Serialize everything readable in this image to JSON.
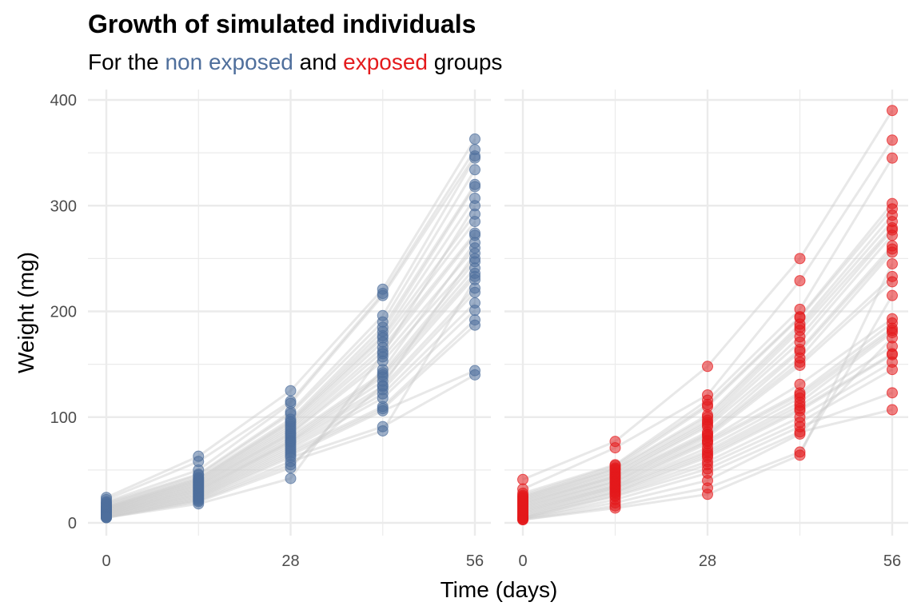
{
  "title": "Growth of simulated individuals",
  "subtitle": {
    "prefix": "For the ",
    "group1": "non exposed",
    "mid": " and ",
    "group2": "exposed",
    "suffix": " groups"
  },
  "colors": {
    "non_exposed": "#4f6f9c",
    "exposed": "#e41a1c",
    "trajectory": "#cccccc",
    "grid": "#ebebeb"
  },
  "chart_data": {
    "type": "scatter",
    "title": "Growth of simulated individuals",
    "xlabel": "Time (days)",
    "ylabel": "Weight (mg)",
    "xlim": [
      0,
      56
    ],
    "ylim": [
      0,
      400
    ],
    "x_ticks": [
      0,
      28,
      56
    ],
    "x_tick_labels": [
      "0",
      "28",
      "56"
    ],
    "y_ticks": [
      0,
      100,
      200,
      300,
      400
    ],
    "y_tick_labels": [
      "0",
      "100",
      "200",
      "300",
      "400"
    ],
    "timepoints": [
      0,
      14,
      28,
      42,
      56
    ],
    "grid": true,
    "legend": "none",
    "panels": [
      {
        "name": "non exposed",
        "color": "#4f6f9c",
        "points": {
          "0": [
            24,
            22,
            20,
            19,
            18,
            17,
            16,
            15,
            15,
            14,
            14,
            13,
            13,
            12,
            12,
            11,
            11,
            10,
            10,
            9,
            9,
            8,
            8,
            7,
            7,
            6,
            6,
            5,
            5,
            5
          ],
          "14": [
            63,
            58,
            50,
            46,
            45,
            43,
            42,
            41,
            40,
            39,
            38,
            37,
            36,
            35,
            34,
            33,
            32,
            31,
            30,
            29,
            28,
            27,
            26,
            25,
            24,
            23,
            22,
            21,
            20,
            18
          ],
          "28": [
            125,
            115,
            113,
            105,
            103,
            98,
            96,
            95,
            93,
            91,
            89,
            87,
            85,
            84,
            82,
            80,
            78,
            77,
            76,
            74,
            72,
            70,
            68,
            66,
            64,
            62,
            58,
            55,
            52,
            42
          ],
          "42": [
            221,
            217,
            215,
            196,
            190,
            185,
            181,
            177,
            175,
            171,
            166,
            162,
            157,
            153,
            142,
            140,
            138,
            134,
            129,
            126,
            122,
            118,
            110,
            108,
            106,
            91,
            87,
            130,
            145,
            160
          ],
          "56": [
            363,
            353,
            347,
            345,
            334,
            320,
            318,
            307,
            292,
            285,
            274,
            272,
            260,
            250,
            247,
            241,
            236,
            233,
            222,
            218,
            208,
            201,
            192,
            187,
            144,
            140,
            230,
            255,
            265,
            300
          ]
        }
      },
      {
        "name": "exposed",
        "color": "#e41a1c",
        "points": {
          "0": [
            41,
            32,
            28,
            26,
            25,
            24,
            23,
            22,
            21,
            20,
            19,
            18,
            17,
            16,
            15,
            14,
            13,
            12,
            11,
            10,
            9,
            8,
            7,
            6,
            5,
            5,
            4,
            4,
            3,
            3
          ],
          "14": [
            77,
            71,
            55,
            54,
            52,
            51,
            50,
            48,
            47,
            45,
            44,
            43,
            42,
            40,
            39,
            38,
            36,
            35,
            34,
            33,
            32,
            30,
            29,
            28,
            26,
            25,
            22,
            19,
            16,
            14
          ],
          "28": [
            148,
            121,
            116,
            112,
            110,
            102,
            100,
            97,
            95,
            93,
            91,
            86,
            84,
            83,
            81,
            78,
            77,
            75,
            71,
            68,
            66,
            64,
            62,
            58,
            55,
            51,
            47,
            40,
            33,
            27
          ],
          "42": [
            250,
            229,
            202,
            195,
            194,
            188,
            185,
            182,
            176,
            171,
            164,
            162,
            156,
            152,
            149,
            131,
            123,
            121,
            118,
            114,
            111,
            108,
            106,
            100,
            95,
            91,
            86,
            84,
            67,
            64
          ],
          "56": [
            390,
            362,
            345,
            302,
            297,
            291,
            285,
            279,
            277,
            272,
            262,
            259,
            256,
            233,
            228,
            193,
            189,
            184,
            182,
            180,
            167,
            160,
            159,
            152,
            145,
            123,
            107,
            175,
            215,
            245
          ]
        }
      }
    ]
  }
}
